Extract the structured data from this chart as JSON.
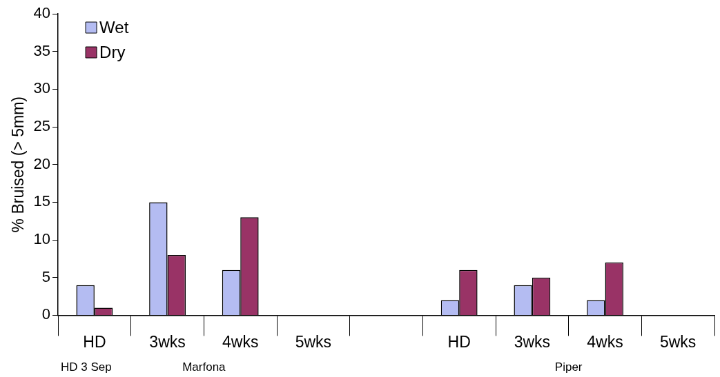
{
  "chart_data": {
    "type": "bar",
    "ylabel": "% Bruised (> 5mm)",
    "categories": [
      "HD",
      "3wks",
      "4wks",
      "5wks",
      null,
      "HD",
      "3wks",
      "4wks",
      "5wks"
    ],
    "series": [
      {
        "name": "Wet",
        "color": "#b4bcf2",
        "values": [
          4,
          15,
          6,
          null,
          null,
          2,
          4,
          2,
          null
        ]
      },
      {
        "name": "Dry",
        "color": "#993366",
        "values": [
          1,
          8,
          13,
          null,
          null,
          6,
          5,
          7,
          null
        ]
      }
    ],
    "ylim": [
      0,
      40
    ],
    "yticks": [
      0,
      5,
      10,
      15,
      20,
      25,
      30,
      35,
      40
    ],
    "grid": false,
    "legend": "top left",
    "annotations": [
      "HD 3 Sep",
      "Marfona",
      "Piper"
    ]
  }
}
